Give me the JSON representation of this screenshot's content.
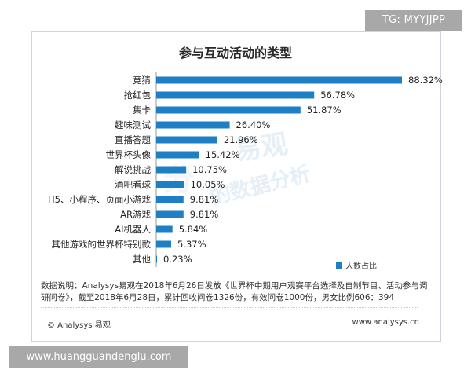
{
  "header": {
    "tg_label": "TG: MYYJJPP"
  },
  "watermark": {
    "brand": "易观",
    "tagline": "的数据分析",
    "mark": "分"
  },
  "chart_data": {
    "type": "bar",
    "orientation": "horizontal",
    "title": "参与互动活动的类型",
    "categories": [
      "竞猜",
      "抢红包",
      "集卡",
      "趣味测试",
      "直播答题",
      "世界杯头像",
      "解说挑战",
      "酒吧看球",
      "H5、小程序、页面小游戏",
      "AR游戏",
      "AI机器人",
      "其他游戏的世界杯特别款",
      "其他"
    ],
    "values": [
      88.32,
      56.78,
      51.87,
      26.4,
      21.96,
      15.42,
      10.75,
      10.05,
      9.81,
      9.81,
      5.84,
      5.37,
      0.23
    ],
    "value_labels": [
      "88.32%",
      "56.78%",
      "51.87%",
      "26.40%",
      "21.96%",
      "15.42%",
      "10.75%",
      "10.05%",
      "9.81%",
      "9.81%",
      "5.84%",
      "5.37%",
      "0.23%"
    ],
    "series": [
      {
        "name": "人数占比",
        "color": "#1f7fc4"
      }
    ],
    "xlim": [
      0,
      100
    ],
    "grid": false,
    "legend_position": "bottom-right"
  },
  "note": {
    "text": "数据说明：Analysys易观在2018年6月26日发放《世界杯中期用户观赛平台选择及自制节目、活动参与调研问卷》，截至2018年6月28日，累计回收问卷1326份，有效问卷1000份，男女比例606：394"
  },
  "footer": {
    "left": "© Analysys 易观",
    "right": "www.analysys.cn"
  },
  "site_banner": {
    "text": "www.huangguandenglu.com"
  }
}
